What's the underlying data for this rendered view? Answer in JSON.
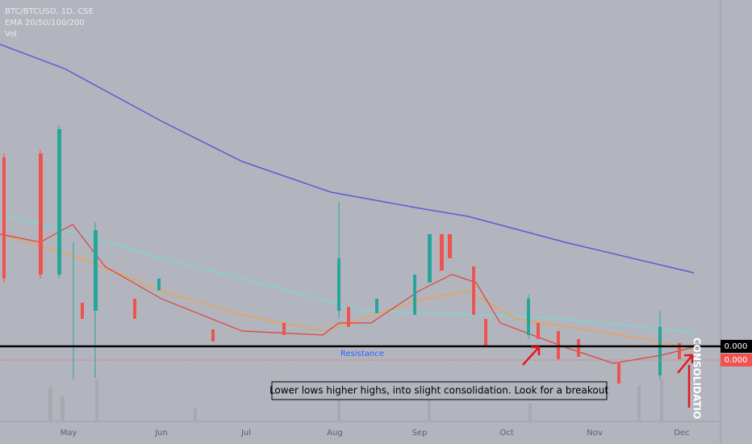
{
  "header": {
    "symbol": "BTC/BTCUSD, 1D, CSE",
    "indicators": "EMA 20/50/100/200",
    "volume": "Vol"
  },
  "price_axis": {
    "line_label": "0.000",
    "last_price": "0.000"
  },
  "time_axis": [
    "May",
    "Jun",
    "Jul",
    "Aug",
    "Sep",
    "Oct",
    "Nov",
    "Dec"
  ],
  "annotations": {
    "resistance": "Resistance",
    "note": "Lower lows higher highs, into slight consolidation. Look for a breakout",
    "vertical": "CONSOLIDATIO"
  }
}
